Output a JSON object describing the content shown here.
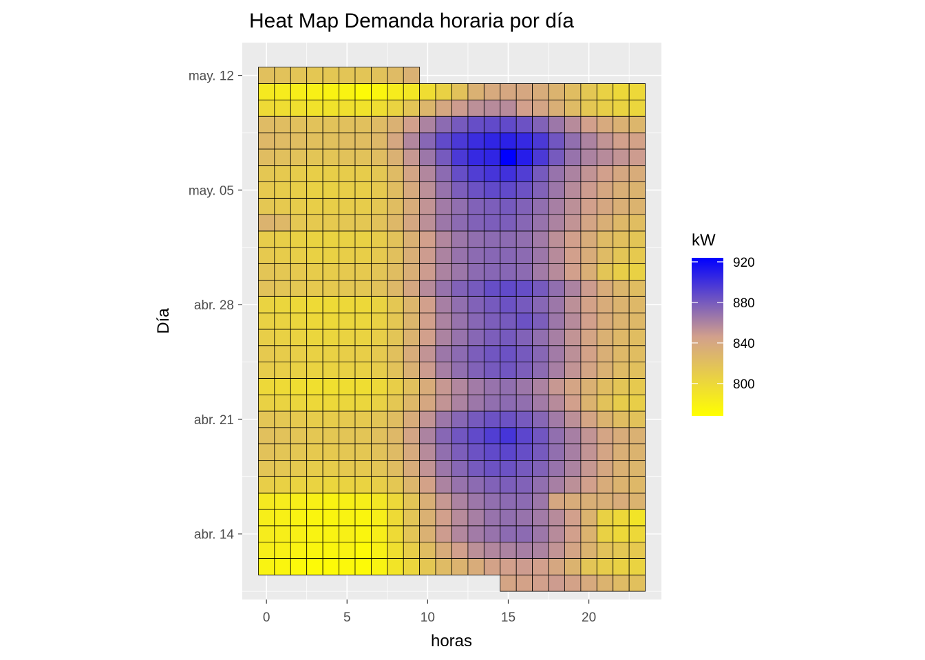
{
  "chart_data": {
    "type": "heatmap",
    "title": "Heat Map Demanda horaria por día",
    "xlabel": "horas",
    "ylabel": "Día",
    "xlim": [
      -1.5,
      24.5
    ],
    "ylim": [
      "2023-04-10",
      "2023-05-14"
    ],
    "x_ticks": [
      0,
      5,
      10,
      15,
      20
    ],
    "x_tick_labels": [
      "0",
      "5",
      "10",
      "15",
      "20"
    ],
    "y_ticks": [
      "2023-04-14",
      "2023-04-21",
      "2023-04-28",
      "2023-05-05",
      "2023-05-12"
    ],
    "y_tick_labels": [
      "abr. 14",
      "abr. 21",
      "abr. 28",
      "may. 05",
      "may. 12"
    ],
    "grid": true,
    "start_hour": 15,
    "n_hours": 714,
    "value_unit": "kW",
    "legend": {
      "title": "kW",
      "position": "right",
      "ticks": [
        800,
        840,
        880,
        920
      ],
      "tick_labels": [
        "800",
        "840",
        "880",
        "920"
      ],
      "min": 768,
      "max": 924,
      "low_color": "#FFFF00",
      "mid_color": "#D2A08C",
      "high_color": "#0000FF"
    },
    "rows": [
      {
        "date": "2023-04-11",
        "values": [
          842,
          844,
          846,
          848,
          844,
          838,
          830,
          824,
          820
        ]
      },
      {
        "date": "2023-04-12",
        "values": [
          778,
          776,
          774,
          772,
          772,
          774,
          772,
          778,
          790,
          802,
          814,
          824,
          830,
          836,
          844,
          846,
          848,
          846,
          840,
          830,
          816,
          810,
          806,
          804
        ]
      },
      {
        "date": "2023-04-13",
        "values": [
          782,
          780,
          778,
          776,
          776,
          778,
          772,
          780,
          794,
          808,
          822,
          836,
          846,
          854,
          858,
          860,
          862,
          860,
          852,
          842,
          830,
          818,
          814,
          812
        ]
      },
      {
        "date": "2023-04-14",
        "values": [
          784,
          782,
          780,
          778,
          778,
          780,
          776,
          782,
          798,
          816,
          832,
          848,
          858,
          864,
          868,
          872,
          872,
          866,
          856,
          846,
          830,
          806,
          800,
          800
        ]
      },
      {
        "date": "2023-04-15",
        "values": [
          782,
          780,
          778,
          776,
          776,
          778,
          776,
          782,
          798,
          816,
          832,
          846,
          856,
          862,
          868,
          870,
          868,
          864,
          856,
          846,
          830,
          806,
          800,
          790
        ]
      },
      {
        "date": "2023-04-16",
        "values": [
          786,
          784,
          782,
          780,
          778,
          780,
          782,
          788,
          800,
          816,
          834,
          850,
          860,
          866,
          870,
          872,
          872,
          866,
          840,
          836,
          834,
          834,
          836,
          830
        ]
      },
      {
        "date": "2023-04-17",
        "values": [
          808,
          806,
          804,
          804,
          802,
          804,
          804,
          808,
          814,
          828,
          844,
          860,
          868,
          872,
          876,
          878,
          876,
          870,
          862,
          854,
          846,
          836,
          830,
          826
        ]
      },
      {
        "date": "2023-04-18",
        "values": [
          816,
          814,
          812,
          810,
          810,
          812,
          812,
          816,
          822,
          836,
          852,
          866,
          874,
          880,
          884,
          884,
          880,
          876,
          868,
          860,
          850,
          840,
          832,
          828
        ]
      },
      {
        "date": "2023-04-19",
        "values": [
          818,
          816,
          814,
          812,
          812,
          814,
          814,
          818,
          824,
          838,
          856,
          870,
          878,
          884,
          888,
          890,
          886,
          880,
          870,
          862,
          852,
          842,
          834,
          830
        ]
      },
      {
        "date": "2023-04-20",
        "values": [
          820,
          818,
          816,
          814,
          814,
          816,
          816,
          820,
          826,
          842,
          860,
          874,
          882,
          888,
          894,
          898,
          890,
          882,
          870,
          862,
          852,
          842,
          836,
          832
        ]
      },
      {
        "date": "2023-04-21",
        "values": [
          816,
          814,
          812,
          810,
          810,
          812,
          812,
          816,
          822,
          836,
          852,
          866,
          874,
          880,
          884,
          884,
          880,
          874,
          864,
          854,
          842,
          830,
          822,
          818
        ]
      },
      {
        "date": "2023-04-22",
        "values": [
          806,
          804,
          802,
          800,
          800,
          802,
          802,
          806,
          814,
          826,
          840,
          852,
          860,
          866,
          870,
          872,
          870,
          864,
          856,
          846,
          830,
          818,
          810,
          808
        ]
      },
      {
        "date": "2023-04-23",
        "values": [
          800,
          798,
          796,
          794,
          794,
          796,
          796,
          800,
          808,
          820,
          836,
          850,
          858,
          864,
          868,
          870,
          866,
          860,
          850,
          842,
          832,
          822,
          816,
          812
        ]
      },
      {
        "date": "2023-04-24",
        "values": [
          810,
          808,
          806,
          804,
          804,
          806,
          806,
          810,
          818,
          832,
          848,
          862,
          870,
          876,
          880,
          882,
          878,
          872,
          862,
          852,
          842,
          832,
          824,
          820
        ]
      },
      {
        "date": "2023-04-25",
        "values": [
          812,
          810,
          808,
          806,
          806,
          808,
          808,
          812,
          820,
          836,
          852,
          866,
          872,
          878,
          882,
          884,
          880,
          874,
          864,
          854,
          844,
          834,
          826,
          822
        ]
      },
      {
        "date": "2023-04-26",
        "values": [
          808,
          806,
          804,
          802,
          802,
          804,
          804,
          808,
          816,
          830,
          846,
          860,
          868,
          874,
          878,
          880,
          876,
          870,
          862,
          852,
          842,
          832,
          826,
          822
        ]
      },
      {
        "date": "2023-04-27",
        "values": [
          806,
          804,
          802,
          800,
          800,
          802,
          802,
          806,
          814,
          828,
          846,
          860,
          868,
          874,
          878,
          880,
          884,
          878,
          866,
          856,
          846,
          836,
          830,
          826
        ]
      },
      {
        "date": "2023-04-28",
        "values": [
          804,
          802,
          800,
          798,
          798,
          800,
          800,
          804,
          814,
          828,
          846,
          862,
          870,
          876,
          880,
          884,
          880,
          874,
          866,
          854,
          844,
          836,
          830,
          826
        ]
      },
      {
        "date": "2023-04-29",
        "values": [
          818,
          816,
          814,
          812,
          812,
          814,
          814,
          818,
          826,
          840,
          856,
          868,
          876,
          880,
          886,
          888,
          886,
          880,
          870,
          860,
          848,
          836,
          828,
          822
        ]
      },
      {
        "date": "2023-04-30",
        "values": [
          816,
          814,
          812,
          810,
          810,
          812,
          812,
          816,
          822,
          834,
          848,
          860,
          866,
          872,
          874,
          874,
          872,
          864,
          856,
          846,
          834,
          816,
          808,
          806
        ]
      },
      {
        "date": "2023-05-01",
        "values": [
          812,
          810,
          808,
          806,
          806,
          808,
          808,
          812,
          820,
          834,
          848,
          860,
          868,
          872,
          874,
          874,
          872,
          866,
          856,
          846,
          836,
          824,
          816,
          812
        ]
      },
      {
        "date": "2023-05-02",
        "values": [
          810,
          808,
          806,
          804,
          804,
          806,
          806,
          810,
          818,
          832,
          846,
          858,
          866,
          870,
          872,
          872,
          870,
          864,
          854,
          846,
          836,
          824,
          820,
          816
        ]
      },
      {
        "date": "2023-05-03",
        "values": [
          830,
          826,
          814,
          812,
          812,
          814,
          814,
          818,
          826,
          840,
          854,
          866,
          872,
          876,
          878,
          878,
          874,
          868,
          860,
          852,
          842,
          834,
          826,
          822
        ]
      },
      {
        "date": "2023-05-04",
        "values": [
          814,
          812,
          810,
          808,
          808,
          810,
          810,
          814,
          822,
          836,
          852,
          864,
          870,
          876,
          878,
          880,
          876,
          870,
          862,
          854,
          846,
          840,
          834,
          830
        ]
      },
      {
        "date": "2023-05-05",
        "values": [
          812,
          810,
          808,
          806,
          806,
          808,
          808,
          812,
          822,
          838,
          854,
          868,
          878,
          884,
          888,
          888,
          884,
          876,
          866,
          856,
          848,
          840,
          834,
          830
        ]
      },
      {
        "date": "2023-05-06",
        "values": [
          814,
          812,
          810,
          808,
          808,
          810,
          810,
          814,
          824,
          842,
          858,
          872,
          886,
          894,
          898,
          900,
          894,
          880,
          868,
          860,
          852,
          846,
          840,
          836
        ]
      },
      {
        "date": "2023-05-07",
        "values": [
          822,
          820,
          818,
          816,
          816,
          818,
          818,
          822,
          832,
          850,
          866,
          880,
          896,
          904,
          906,
          924,
          910,
          896,
          880,
          868,
          860,
          856,
          852,
          848
        ]
      },
      {
        "date": "2023-05-08",
        "values": [
          826,
          824,
          822,
          820,
          820,
          822,
          822,
          826,
          840,
          858,
          874,
          888,
          896,
          902,
          906,
          908,
          904,
          896,
          882,
          870,
          860,
          852,
          846,
          844
        ]
      },
      {
        "date": "2023-05-09",
        "values": [
          824,
          822,
          820,
          818,
          818,
          820,
          820,
          824,
          832,
          846,
          860,
          872,
          880,
          886,
          888,
          888,
          884,
          876,
          866,
          856,
          846,
          838,
          832,
          828
        ]
      },
      {
        "date": "2023-05-10",
        "values": [
          798,
          796,
          794,
          792,
          792,
          794,
          792,
          796,
          804,
          816,
          828,
          840,
          848,
          854,
          856,
          856,
          846,
          842,
          834,
          824,
          814,
          808,
          804,
          802
        ]
      },
      {
        "date": "2023-05-11",
        "values": [
          786,
          784,
          782,
          780,
          778,
          778,
          772,
          776,
          784,
          788,
          796,
          806,
          818,
          832,
          838,
          840,
          840,
          836,
          830,
          822,
          814,
          806,
          800,
          800
        ]
      },
      {
        "date": "2023-05-12",
        "values": [
          820,
          818,
          816,
          814,
          814,
          816,
          816,
          818,
          824,
          832
        ]
      }
    ]
  }
}
